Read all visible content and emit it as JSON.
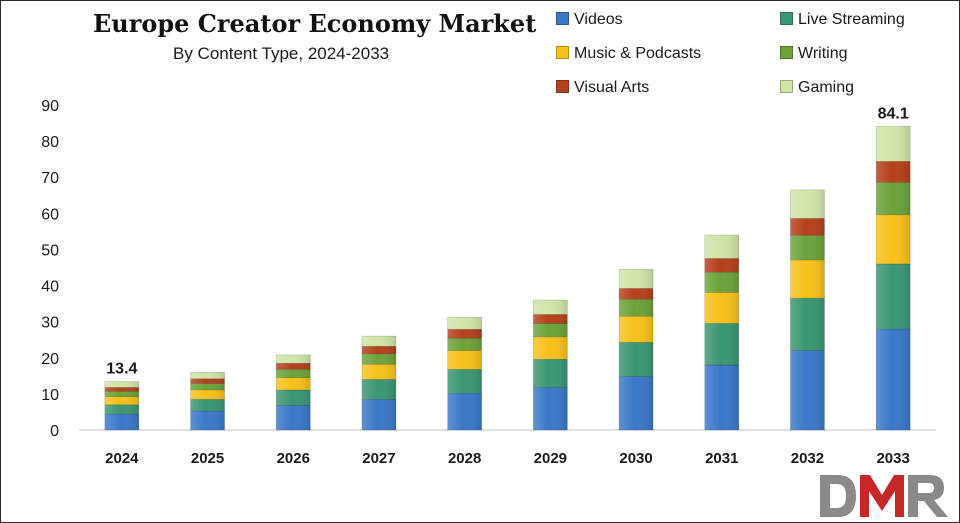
{
  "chart_data": {
    "type": "bar",
    "stacked": true,
    "title": "Europe Creator Economy Market",
    "subtitle": "By Content Type, 2024-2033",
    "categories": [
      "2024",
      "2025",
      "2026",
      "2027",
      "2028",
      "2029",
      "2030",
      "2031",
      "2032",
      "2033"
    ],
    "series": [
      {
        "name": "Videos",
        "color": "#3a78c8",
        "values": [
          4.4,
          5.3,
          6.8,
          8.5,
          10.2,
          11.8,
          14.8,
          18.0,
          22.0,
          28.0
        ]
      },
      {
        "name": "Live Streaming",
        "color": "#3a9672",
        "values": [
          2.6,
          3.2,
          4.3,
          5.5,
          6.6,
          7.8,
          9.5,
          11.5,
          14.5,
          18.0
        ]
      },
      {
        "name": "Music & Podcasts",
        "color": "#f7c11a",
        "values": [
          2.2,
          2.6,
          3.4,
          4.2,
          5.2,
          6.2,
          7.2,
          8.6,
          10.6,
          13.6
        ]
      },
      {
        "name": "Writing",
        "color": "#6ca23a",
        "values": [
          1.5,
          1.8,
          2.3,
          2.9,
          3.4,
          3.7,
          4.7,
          5.6,
          6.8,
          9.0
        ]
      },
      {
        "name": "Visual Arts",
        "color": "#b5401c",
        "values": [
          1.1,
          1.3,
          1.7,
          2.1,
          2.5,
          2.5,
          3.0,
          3.8,
          4.7,
          5.8
        ]
      },
      {
        "name": "Gaming",
        "color": "#cfe5a8",
        "values": [
          1.6,
          1.8,
          2.3,
          2.8,
          3.3,
          4.0,
          5.3,
          6.5,
          7.9,
          9.7
        ]
      }
    ],
    "data_labels": [
      {
        "category": "2024",
        "text": "13.4"
      },
      {
        "category": "2033",
        "text": "84.1"
      }
    ],
    "ylim": [
      0,
      90
    ],
    "yticks": [
      0,
      10,
      20,
      30,
      40,
      50,
      60,
      70,
      80,
      90
    ],
    "xlabel": "",
    "ylabel": "",
    "grid": false,
    "legend_position": "top-right"
  },
  "logo": {
    "text": "DMR",
    "letters": [
      "D",
      "M",
      "R"
    ],
    "colors": [
      "#8a8a8a",
      "#c62828",
      "#8a8a8a"
    ]
  }
}
